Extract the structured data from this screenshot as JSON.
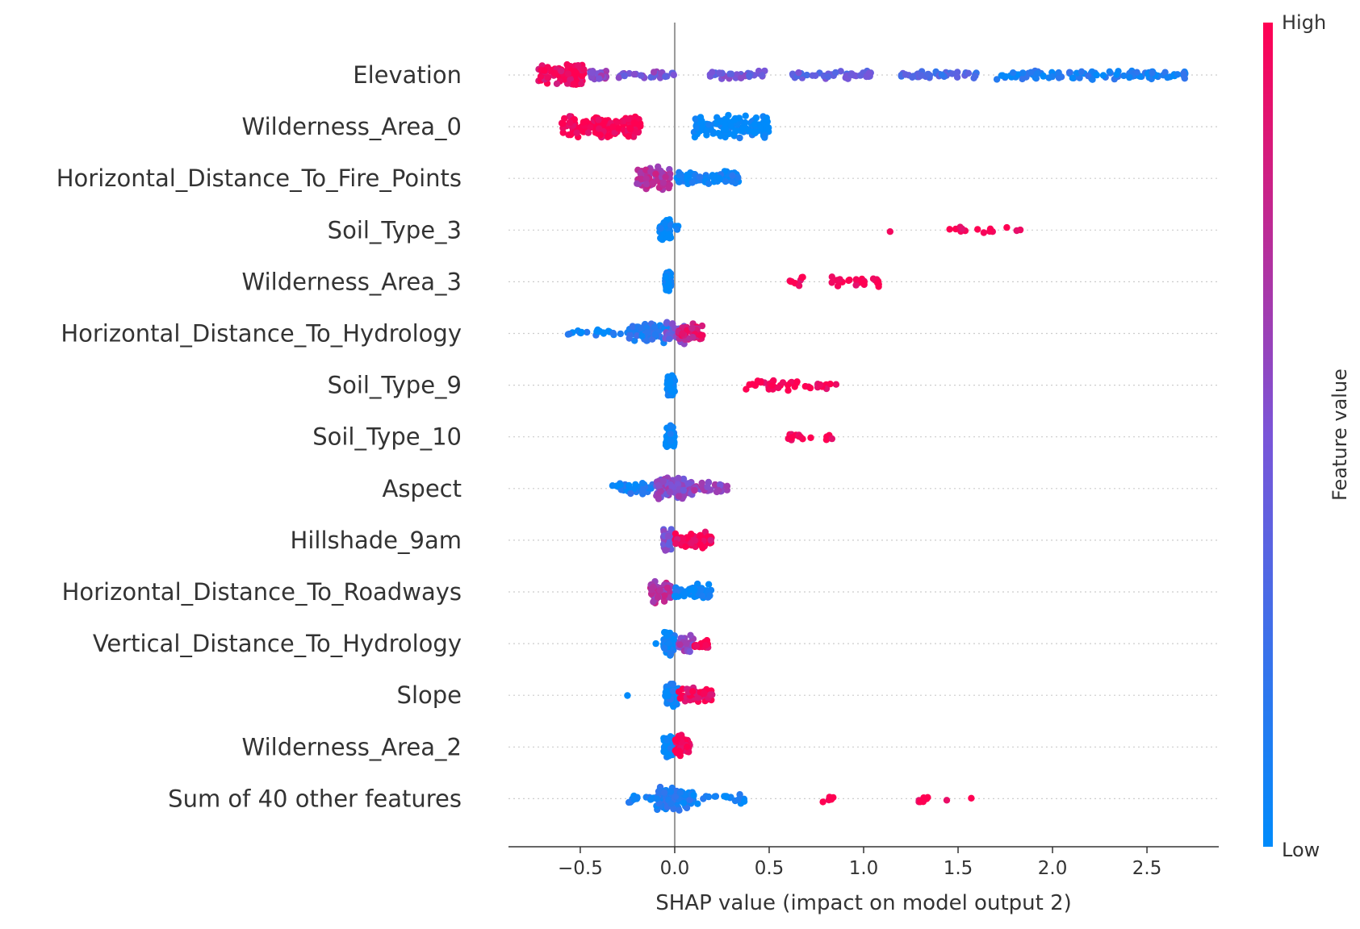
{
  "chart_data": {
    "type": "scatter",
    "subtype": "shap-beeswarm",
    "xlabel": "SHAP value (impact on model output 2)",
    "xlim": [
      -0.88,
      2.88
    ],
    "xticks": [
      -0.5,
      0.0,
      0.5,
      1.0,
      1.5,
      2.0,
      2.5
    ],
    "xtick_labels": [
      "−0.5",
      "0.0",
      "0.5",
      "1.0",
      "1.5",
      "2.0",
      "2.5"
    ],
    "colorbar": {
      "label": "Feature value",
      "high_label": "High",
      "low_label": "Low",
      "low_color": "#008bfb",
      "high_color": "#ff0052"
    },
    "features": [
      {
        "name": "Elevation",
        "segments": [
          {
            "from": -0.72,
            "to": -0.48,
            "n": 110,
            "c": 0.95,
            "dense": 1
          },
          {
            "from": -0.45,
            "to": -0.35,
            "n": 25,
            "c": 0.6,
            "dense": 0.4
          },
          {
            "from": -0.3,
            "to": 0.0,
            "n": 30,
            "c": 0.5,
            "dense": 0.2
          },
          {
            "from": 0.17,
            "to": 0.5,
            "n": 40,
            "c": 0.45,
            "dense": 0.2
          },
          {
            "from": 0.62,
            "to": 1.05,
            "n": 45,
            "c": 0.4,
            "dense": 0.2
          },
          {
            "from": 1.2,
            "to": 1.6,
            "n": 40,
            "c": 0.3,
            "dense": 0.2
          },
          {
            "from": 1.7,
            "to": 2.72,
            "n": 110,
            "c": 0.1,
            "dense": 0.3
          }
        ]
      },
      {
        "name": "Wilderness_Area_0",
        "segments": [
          {
            "from": -0.6,
            "to": -0.2,
            "n": 120,
            "c": 1.0,
            "dense": 1
          },
          {
            "from": -0.25,
            "to": -0.18,
            "n": 40,
            "c": 1.0,
            "dense": 1
          },
          {
            "from": 0.1,
            "to": 0.5,
            "n": 130,
            "c": 0.0,
            "dense": 1
          }
        ]
      },
      {
        "name": "Horizontal_Distance_To_Fire_Points",
        "segments": [
          {
            "from": -0.2,
            "to": -0.02,
            "n": 70,
            "c": 0.7,
            "dense": 1
          },
          {
            "from": 0.0,
            "to": 0.34,
            "n": 70,
            "c": 0.05,
            "dense": 0.5
          }
        ]
      },
      {
        "name": "Soil_Type_3",
        "segments": [
          {
            "from": -0.08,
            "to": -0.02,
            "n": 60,
            "c": 0.0,
            "dense": 1
          },
          {
            "from": 0.0,
            "to": 0.02,
            "n": 4,
            "c": 0.0,
            "dense": 0.3
          },
          {
            "from": 1.14,
            "to": 1.14,
            "n": 1,
            "c": 1.0,
            "dense": 0
          },
          {
            "from": 1.43,
            "to": 1.87,
            "n": 14,
            "c": 1.0,
            "dense": 0.2
          }
        ]
      },
      {
        "name": "Wilderness_Area_3",
        "segments": [
          {
            "from": -0.05,
            "to": -0.02,
            "n": 60,
            "c": 0.0,
            "dense": 1
          },
          {
            "from": 0.58,
            "to": 0.68,
            "n": 8,
            "c": 1.0,
            "dense": 0.3
          },
          {
            "from": 0.8,
            "to": 1.08,
            "n": 24,
            "c": 1.0,
            "dense": 0.4
          }
        ]
      },
      {
        "name": "Horizontal_Distance_To_Hydrology",
        "segments": [
          {
            "from": -0.57,
            "to": -0.25,
            "n": 20,
            "c": 0.05,
            "dense": 0.2
          },
          {
            "from": -0.25,
            "to": -0.03,
            "n": 60,
            "c": 0.15,
            "dense": 0.8
          },
          {
            "from": -0.05,
            "to": 0.05,
            "n": 50,
            "c": 0.45,
            "dense": 1
          },
          {
            "from": 0.02,
            "to": 0.15,
            "n": 50,
            "c": 0.85,
            "dense": 1
          }
        ]
      },
      {
        "name": "Soil_Type_9",
        "segments": [
          {
            "from": -0.04,
            "to": 0.0,
            "n": 60,
            "c": 0.0,
            "dense": 1
          },
          {
            "from": 0.36,
            "to": 0.88,
            "n": 40,
            "c": 1.0,
            "dense": 0.4
          }
        ]
      },
      {
        "name": "Soil_Type_10",
        "segments": [
          {
            "from": -0.05,
            "to": 0.0,
            "n": 60,
            "c": 0.0,
            "dense": 1
          },
          {
            "from": 0.58,
            "to": 0.68,
            "n": 10,
            "c": 1.0,
            "dense": 0.3
          },
          {
            "from": 0.72,
            "to": 0.72,
            "n": 1,
            "c": 1.0,
            "dense": 0
          },
          {
            "from": 0.8,
            "to": 0.85,
            "n": 4,
            "c": 1.0,
            "dense": 0.2
          }
        ]
      },
      {
        "name": "Aspect",
        "segments": [
          {
            "from": -0.33,
            "to": -0.1,
            "n": 40,
            "c": 0.1,
            "dense": 0.4
          },
          {
            "from": -0.1,
            "to": 0.1,
            "n": 100,
            "c": 0.55,
            "dense": 1
          },
          {
            "from": 0.1,
            "to": 0.28,
            "n": 30,
            "c": 0.6,
            "dense": 0.4
          }
        ]
      },
      {
        "name": "Hillshade_9am",
        "segments": [
          {
            "from": -0.06,
            "to": -0.01,
            "n": 60,
            "c": 0.5,
            "dense": 1
          },
          {
            "from": 0.0,
            "to": 0.2,
            "n": 60,
            "c": 0.95,
            "dense": 0.7
          }
        ]
      },
      {
        "name": "Horizontal_Distance_To_Roadways",
        "segments": [
          {
            "from": -0.13,
            "to": -0.02,
            "n": 70,
            "c": 0.7,
            "dense": 1
          },
          {
            "from": 0.0,
            "to": 0.2,
            "n": 60,
            "c": 0.05,
            "dense": 0.6
          }
        ]
      },
      {
        "name": "Vertical_Distance_To_Hydrology",
        "segments": [
          {
            "from": -0.1,
            "to": -0.1,
            "n": 1,
            "c": 0.0,
            "dense": 0
          },
          {
            "from": -0.06,
            "to": 0.0,
            "n": 60,
            "c": 0.05,
            "dense": 1
          },
          {
            "from": 0.02,
            "to": 0.1,
            "n": 30,
            "c": 0.6,
            "dense": 0.7
          },
          {
            "from": 0.1,
            "to": 0.18,
            "n": 20,
            "c": 1.0,
            "dense": 0.4
          }
        ]
      },
      {
        "name": "Slope",
        "segments": [
          {
            "from": -0.25,
            "to": -0.25,
            "n": 1,
            "c": 0.0,
            "dense": 0
          },
          {
            "from": -0.05,
            "to": 0.02,
            "n": 60,
            "c": 0.05,
            "dense": 1
          },
          {
            "from": 0.02,
            "to": 0.2,
            "n": 50,
            "c": 0.95,
            "dense": 0.6
          }
        ]
      },
      {
        "name": "Wilderness_Area_2",
        "segments": [
          {
            "from": -0.06,
            "to": 0.0,
            "n": 50,
            "c": 0.0,
            "dense": 1
          },
          {
            "from": 0.0,
            "to": 0.08,
            "n": 40,
            "c": 1.0,
            "dense": 1
          }
        ]
      },
      {
        "name": "Sum of 40 other features",
        "segments": [
          {
            "from": -0.25,
            "to": -0.1,
            "n": 15,
            "c": 0.05,
            "dense": 0.3
          },
          {
            "from": -0.1,
            "to": 0.1,
            "n": 90,
            "c": 0.1,
            "dense": 1
          },
          {
            "from": 0.1,
            "to": 0.37,
            "n": 20,
            "c": 0.05,
            "dense": 0.3
          },
          {
            "from": 0.78,
            "to": 0.86,
            "n": 6,
            "c": 1.0,
            "dense": 0.2
          },
          {
            "from": 1.28,
            "to": 1.36,
            "n": 8,
            "c": 1.0,
            "dense": 0.2
          },
          {
            "from": 1.44,
            "to": 1.44,
            "n": 1,
            "c": 1.0,
            "dense": 0
          },
          {
            "from": 1.57,
            "to": 1.57,
            "n": 1,
            "c": 1.0,
            "dense": 0
          }
        ]
      }
    ]
  }
}
